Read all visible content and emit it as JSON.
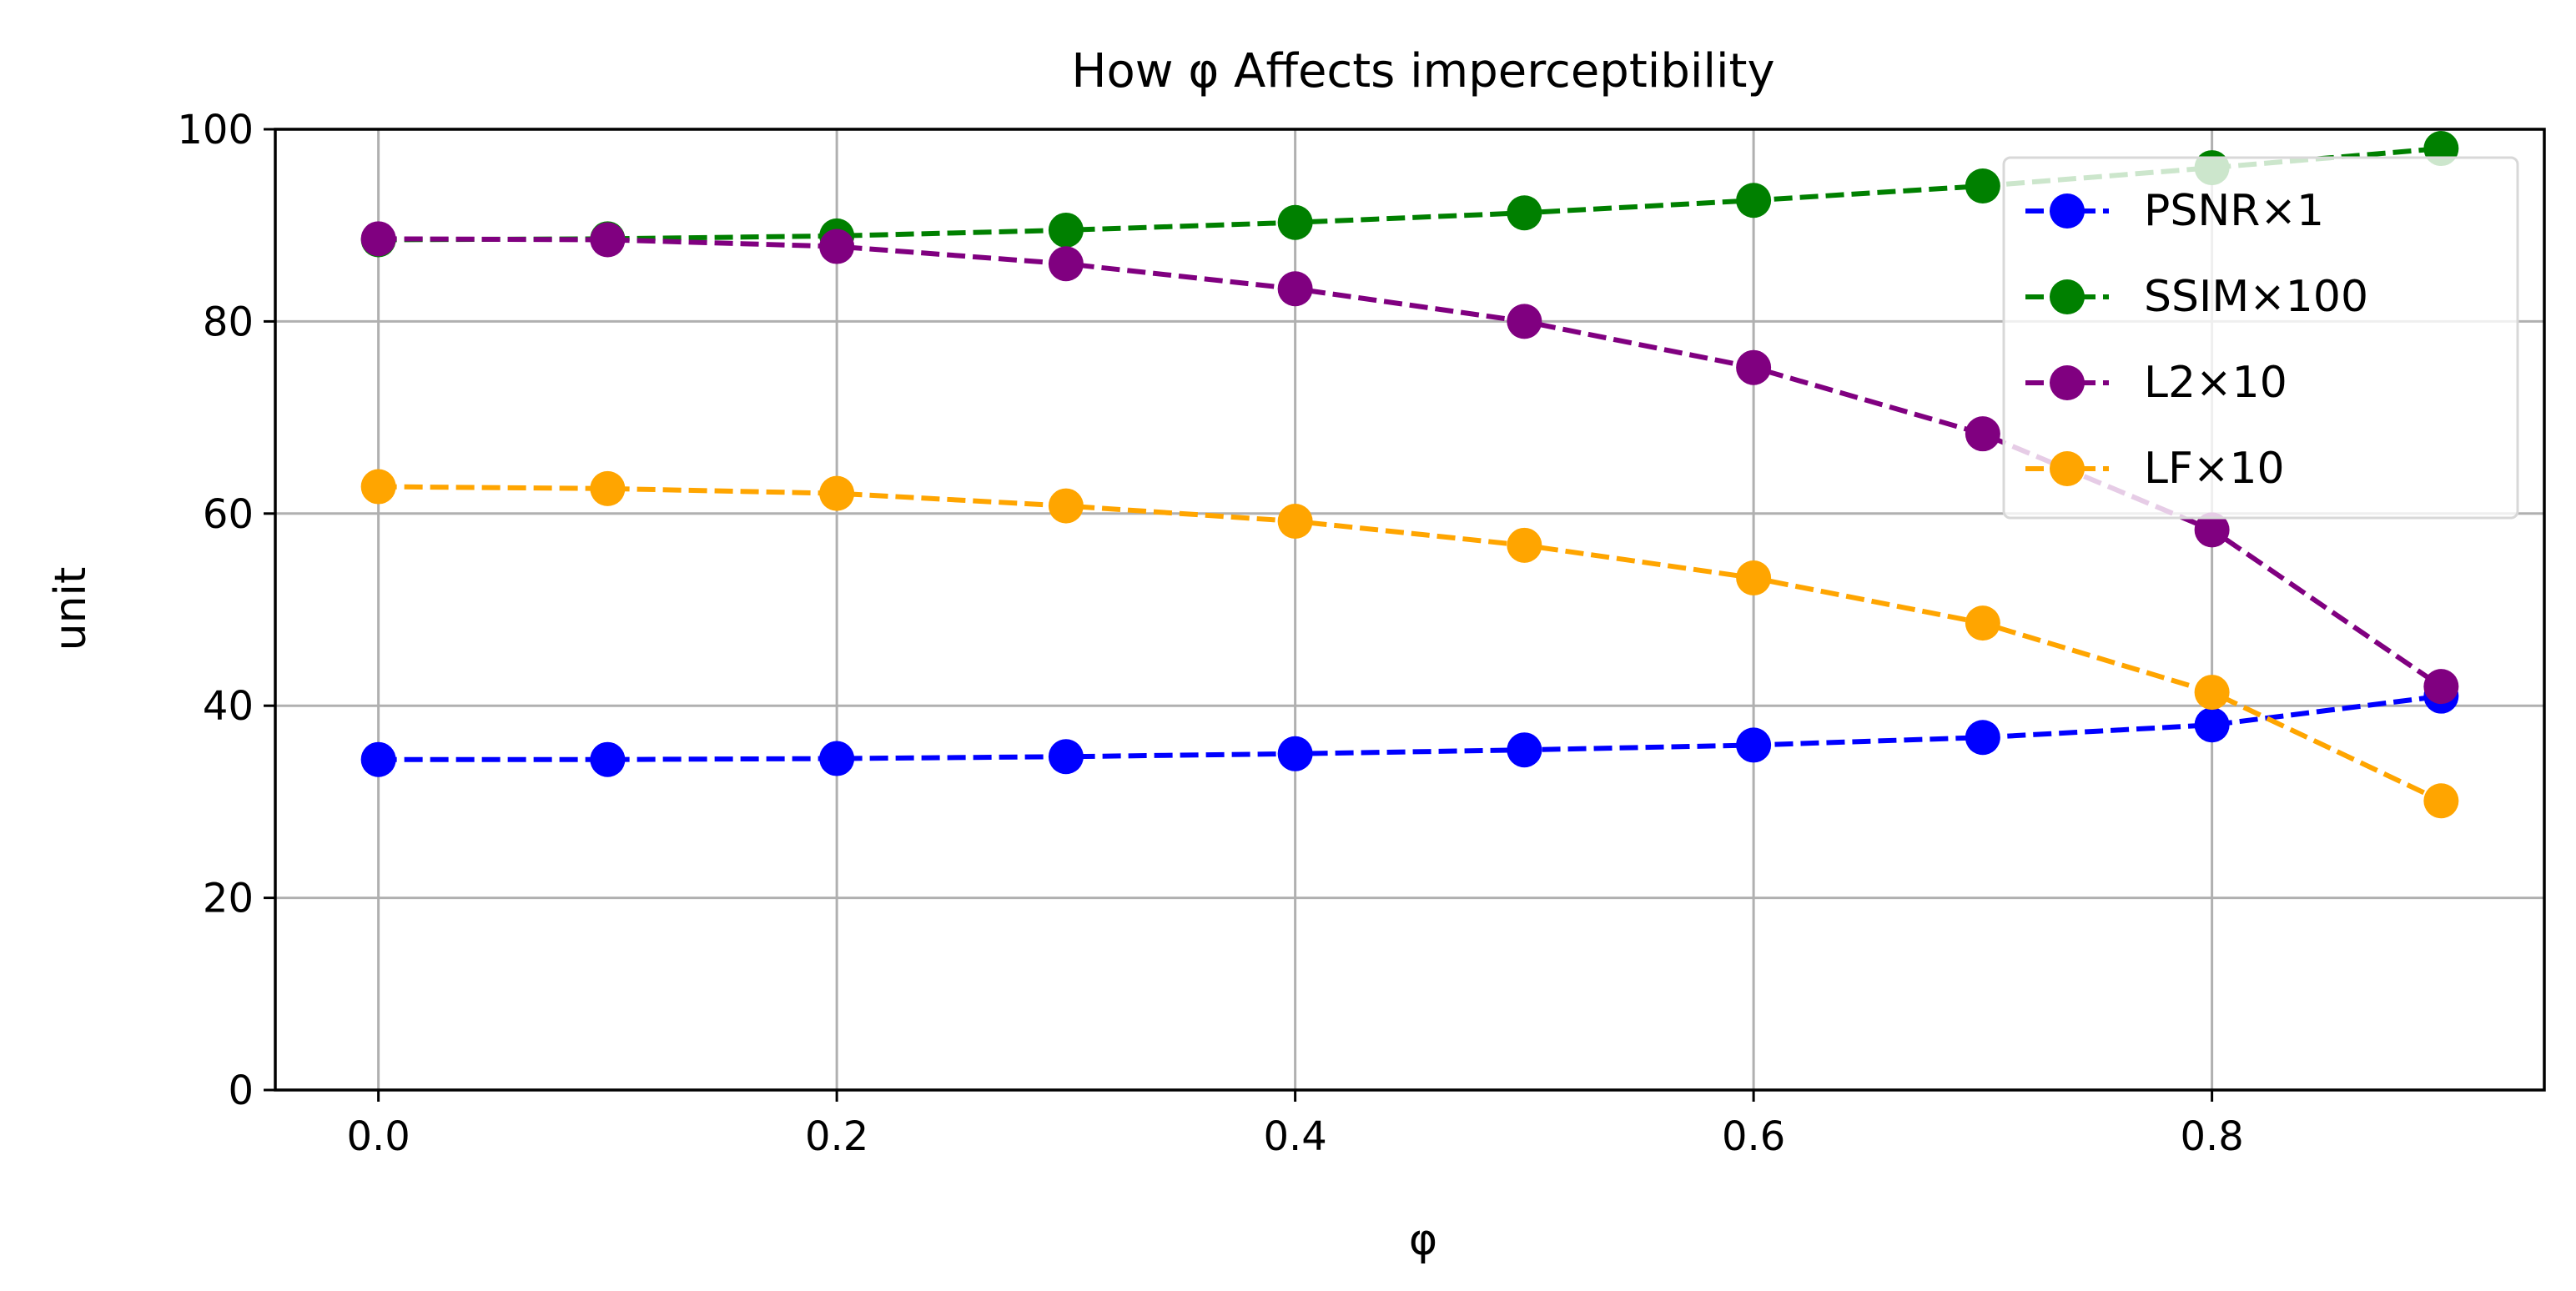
{
  "chart_data": {
    "type": "line",
    "title": "How φ Affects imperceptibility",
    "xlabel": "φ",
    "ylabel": "unit",
    "xlim": [
      -0.045,
      0.945
    ],
    "ylim": [
      0,
      100
    ],
    "x": [
      0.0,
      0.1,
      0.2,
      0.3,
      0.4,
      0.5,
      0.6,
      0.7,
      0.8,
      0.9
    ],
    "x_ticks": [
      0.0,
      0.2,
      0.4,
      0.6,
      0.8
    ],
    "x_tick_labels": [
      "0.0",
      "0.2",
      "0.4",
      "0.6",
      "0.8"
    ],
    "y_ticks": [
      0,
      20,
      40,
      60,
      80,
      100
    ],
    "y_tick_labels": [
      "0",
      "20",
      "40",
      "60",
      "80",
      "100"
    ],
    "grid": true,
    "legend_position": "top-right",
    "line_style": "dashed",
    "marker": "circle",
    "series": [
      {
        "name": "PSNR×1",
        "color": "#0000ff",
        "values": [
          34.4,
          34.4,
          34.5,
          34.7,
          35.0,
          35.4,
          35.9,
          36.7,
          38.0,
          41.0
        ]
      },
      {
        "name": "SSIM×100",
        "color": "#008000",
        "values": [
          88.5,
          88.6,
          88.9,
          89.5,
          90.3,
          91.3,
          92.6,
          94.1,
          96.0,
          98.0
        ]
      },
      {
        "name": "L2×10",
        "color": "#800080",
        "values": [
          88.6,
          88.5,
          87.8,
          86.0,
          83.4,
          80.0,
          75.2,
          68.3,
          58.3,
          42.0
        ]
      },
      {
        "name": "LF×10",
        "color": "#ffa500",
        "values": [
          62.8,
          62.6,
          62.1,
          60.8,
          59.2,
          56.7,
          53.3,
          48.6,
          41.4,
          30.1
        ]
      }
    ]
  }
}
